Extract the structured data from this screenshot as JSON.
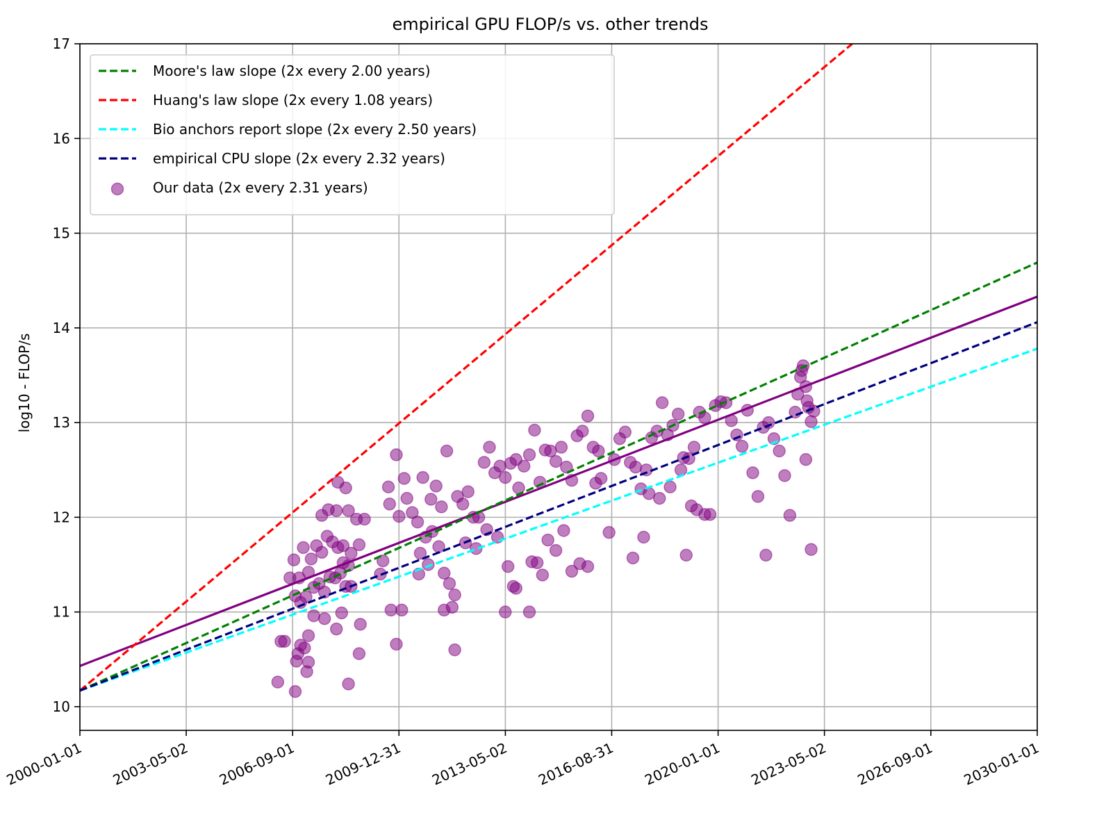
{
  "chart_data": {
    "type": "scatter",
    "title": "empirical GPU FLOP/s vs. other trends",
    "xlabel": "",
    "ylabel": "log10 - FLOP/s",
    "x_axis_kind": "date",
    "xlim": [
      "2000-01-01",
      "2030-01-01"
    ],
    "ylim": [
      9.75,
      17
    ],
    "x_ticks": [
      "2000-01-01",
      "2003-05-02",
      "2006-09-01",
      "2009-12-31",
      "2013-05-02",
      "2016-08-31",
      "2020-01-01",
      "2023-05-02",
      "2026-09-01",
      "2030-01-01"
    ],
    "y_ticks": [
      10,
      11,
      12,
      13,
      14,
      15,
      16,
      17
    ],
    "grid": true,
    "legend_placement": "top-left",
    "lines": [
      {
        "name": "Moore's law slope (2x every 2.00 years)",
        "style": "dashed",
        "color": "#008000",
        "points": [
          [
            "2000-01-01",
            10.17
          ],
          [
            "2030-01-01",
            14.69
          ]
        ]
      },
      {
        "name": "Huang's law slope (2x every 1.08 years)",
        "style": "dashed",
        "color": "#ff0000",
        "points": [
          [
            "2000-01-01",
            10.17
          ],
          [
            "2024-03-15",
            17.0
          ]
        ]
      },
      {
        "name": "Bio anchors report slope (2x every 2.50 years)",
        "style": "dashed",
        "color": "#00ffff",
        "points": [
          [
            "2000-01-01",
            10.17
          ],
          [
            "2030-01-01",
            13.78
          ]
        ]
      },
      {
        "name": "empirical CPU slope (2x every 2.32 years)",
        "style": "dashed",
        "color": "#000080",
        "points": [
          [
            "2000-01-01",
            10.17
          ],
          [
            "2030-01-01",
            14.06
          ]
        ]
      },
      {
        "name": "",
        "style": "solid",
        "color": "#800080",
        "points": [
          [
            "2000-01-01",
            10.43
          ],
          [
            "2030-01-01",
            14.33
          ]
        ]
      }
    ],
    "scatter": {
      "name": "Our data (2x every 2.31 years)",
      "color": "#800080",
      "points": [
        [
          "2006-03-15",
          10.26
        ],
        [
          "2006-04-20",
          10.69
        ],
        [
          "2006-06-01",
          10.69
        ],
        [
          "2006-10-01",
          10.16
        ],
        [
          "2006-10-15",
          10.48
        ],
        [
          "2006-11-01",
          10.56
        ],
        [
          "2006-12-01",
          10.65
        ],
        [
          "2007-01-15",
          10.62
        ],
        [
          "2007-03-01",
          10.75
        ],
        [
          "2007-02-10",
          10.37
        ],
        [
          "2007-03-01",
          10.47
        ],
        [
          "2007-05-01",
          10.96
        ],
        [
          "2006-08-01",
          11.36
        ],
        [
          "2006-09-15",
          11.55
        ],
        [
          "2006-11-15",
          11.36
        ],
        [
          "2007-01-01",
          11.68
        ],
        [
          "2007-04-01",
          11.56
        ],
        [
          "2007-06-01",
          11.7
        ],
        [
          "2007-08-01",
          11.63
        ],
        [
          "2007-10-01",
          11.8
        ],
        [
          "2007-12-01",
          11.74
        ],
        [
          "2008-02-01",
          11.68
        ],
        [
          "2008-04-01",
          11.52
        ],
        [
          "2008-06-01",
          11.49
        ],
        [
          "2007-07-01",
          11.3
        ],
        [
          "2007-09-01",
          11.21
        ],
        [
          "2007-11-01",
          11.37
        ],
        [
          "2008-01-01",
          11.36
        ],
        [
          "2008-03-01",
          11.41
        ],
        [
          "2008-05-01",
          11.27
        ],
        [
          "2008-07-01",
          11.27
        ],
        [
          "2007-03-01",
          11.42
        ],
        [
          "2007-05-01",
          11.26
        ],
        [
          "2007-02-01",
          11.16
        ],
        [
          "2006-12-01",
          11.1
        ],
        [
          "2006-10-01",
          11.17
        ],
        [
          "2007-08-01",
          12.02
        ],
        [
          "2007-10-15",
          12.08
        ],
        [
          "2008-01-15",
          12.07
        ],
        [
          "2008-02-01",
          12.37
        ],
        [
          "2008-05-01",
          12.31
        ],
        [
          "2008-06-01",
          12.07
        ],
        [
          "2008-09-01",
          11.98
        ],
        [
          "2008-12-01",
          11.98
        ],
        [
          "2008-04-01",
          11.7
        ],
        [
          "2008-07-01",
          11.62
        ],
        [
          "2008-10-01",
          11.71
        ],
        [
          "2007-09-01",
          10.93
        ],
        [
          "2008-01-15",
          10.82
        ],
        [
          "2008-03-15",
          10.99
        ],
        [
          "2008-06-01",
          10.24
        ],
        [
          "2008-10-01",
          10.56
        ],
        [
          "2008-10-15",
          10.87
        ],
        [
          "2009-07-01",
          11.54
        ],
        [
          "2009-06-01",
          11.4
        ],
        [
          "2009-10-01",
          11.02
        ],
        [
          "2009-12-01",
          10.66
        ],
        [
          "2010-02-01",
          11.02
        ],
        [
          "2009-09-01",
          12.32
        ],
        [
          "2009-12-01",
          12.66
        ],
        [
          "2010-03-01",
          12.41
        ],
        [
          "2009-09-15",
          12.14
        ],
        [
          "2010-01-01",
          12.01
        ],
        [
          "2010-04-01",
          12.2
        ],
        [
          "2010-06-01",
          12.05
        ],
        [
          "2010-08-01",
          11.95
        ],
        [
          "2010-10-01",
          12.42
        ],
        [
          "2011-01-01",
          12.19
        ],
        [
          "2011-03-01",
          12.33
        ],
        [
          "2011-05-01",
          12.11
        ],
        [
          "2011-07-01",
          12.7
        ],
        [
          "2010-09-01",
          11.62
        ],
        [
          "2010-11-01",
          11.79
        ],
        [
          "2011-01-15",
          11.85
        ],
        [
          "2011-04-01",
          11.69
        ],
        [
          "2010-08-15",
          11.4
        ],
        [
          "2010-12-01",
          11.5
        ],
        [
          "2011-06-01",
          11.41
        ],
        [
          "2011-08-01",
          11.3
        ],
        [
          "2011-06-01",
          11.02
        ],
        [
          "2011-09-01",
          11.05
        ],
        [
          "2011-10-01",
          11.18
        ],
        [
          "2011-10-01",
          10.6
        ],
        [
          "2011-11-01",
          12.22
        ],
        [
          "2012-01-01",
          12.14
        ],
        [
          "2012-03-01",
          12.27
        ],
        [
          "2012-05-01",
          12.0
        ],
        [
          "2012-07-01",
          12.0
        ],
        [
          "2012-09-01",
          12.58
        ],
        [
          "2012-11-01",
          12.74
        ],
        [
          "2013-01-01",
          12.47
        ],
        [
          "2013-03-01",
          12.54
        ],
        [
          "2013-05-01",
          12.42
        ],
        [
          "2013-07-01",
          12.57
        ],
        [
          "2013-09-01",
          12.61
        ],
        [
          "2012-02-01",
          11.73
        ],
        [
          "2012-06-01",
          11.67
        ],
        [
          "2012-10-01",
          11.87
        ],
        [
          "2013-02-01",
          11.79
        ],
        [
          "2013-06-01",
          11.48
        ],
        [
          "2013-08-01",
          11.27
        ],
        [
          "2013-09-01",
          11.25
        ],
        [
          "2013-05-01",
          11.0
        ],
        [
          "2014-02-01",
          11.0
        ],
        [
          "2013-10-01",
          12.31
        ],
        [
          "2013-12-01",
          12.54
        ],
        [
          "2014-02-01",
          12.66
        ],
        [
          "2014-04-01",
          12.92
        ],
        [
          "2014-06-01",
          12.37
        ],
        [
          "2014-08-01",
          12.71
        ],
        [
          "2014-10-01",
          12.7
        ],
        [
          "2014-12-01",
          12.59
        ],
        [
          "2015-02-01",
          12.74
        ],
        [
          "2015-04-01",
          12.53
        ],
        [
          "2015-06-01",
          12.39
        ],
        [
          "2015-08-01",
          12.86
        ],
        [
          "2015-10-01",
          12.91
        ],
        [
          "2015-12-01",
          13.07
        ],
        [
          "2016-02-01",
          12.74
        ],
        [
          "2016-04-01",
          12.7
        ],
        [
          "2014-03-01",
          11.53
        ],
        [
          "2014-05-01",
          11.52
        ],
        [
          "2014-07-01",
          11.39
        ],
        [
          "2014-09-01",
          11.76
        ],
        [
          "2014-12-01",
          11.65
        ],
        [
          "2015-03-01",
          11.86
        ],
        [
          "2015-06-01",
          11.43
        ],
        [
          "2015-09-01",
          11.51
        ],
        [
          "2015-12-01",
          11.48
        ],
        [
          "2016-03-01",
          12.36
        ],
        [
          "2016-05-01",
          12.41
        ],
        [
          "2016-08-01",
          11.84
        ],
        [
          "2016-10-01",
          12.61
        ],
        [
          "2016-12-01",
          12.83
        ],
        [
          "2017-02-01",
          12.9
        ],
        [
          "2017-04-01",
          12.58
        ],
        [
          "2017-06-01",
          12.53
        ],
        [
          "2017-08-01",
          12.3
        ],
        [
          "2017-10-01",
          12.5
        ],
        [
          "2017-12-01",
          12.84
        ],
        [
          "2018-02-01",
          12.91
        ],
        [
          "2018-04-01",
          13.21
        ],
        [
          "2018-06-01",
          12.87
        ],
        [
          "2018-08-01",
          12.97
        ],
        [
          "2018-10-01",
          13.09
        ],
        [
          "2018-12-01",
          12.63
        ],
        [
          "2019-02-01",
          12.62
        ],
        [
          "2019-04-01",
          12.74
        ],
        [
          "2019-06-01",
          13.11
        ],
        [
          "2019-08-01",
          13.05
        ],
        [
          "2017-05-01",
          11.57
        ],
        [
          "2017-09-01",
          11.79
        ],
        [
          "2017-11-01",
          12.25
        ],
        [
          "2018-03-01",
          12.2
        ],
        [
          "2018-07-01",
          12.32
        ],
        [
          "2018-11-01",
          12.5
        ],
        [
          "2019-01-01",
          11.6
        ],
        [
          "2019-03-01",
          12.12
        ],
        [
          "2019-05-01",
          12.08
        ],
        [
          "2019-08-01",
          12.03
        ],
        [
          "2019-10-01",
          12.03
        ],
        [
          "2019-12-01",
          13.18
        ],
        [
          "2020-02-01",
          13.22
        ],
        [
          "2020-04-01",
          13.21
        ],
        [
          "2020-06-01",
          13.02
        ],
        [
          "2020-08-01",
          12.87
        ],
        [
          "2020-10-01",
          12.75
        ],
        [
          "2020-12-01",
          13.13
        ],
        [
          "2021-02-01",
          12.47
        ],
        [
          "2021-04-01",
          12.22
        ],
        [
          "2021-06-01",
          12.95
        ],
        [
          "2021-08-01",
          13.0
        ],
        [
          "2021-10-01",
          12.83
        ],
        [
          "2021-12-01",
          12.7
        ],
        [
          "2022-02-01",
          12.44
        ],
        [
          "2022-04-01",
          12.02
        ],
        [
          "2021-07-01",
          11.6
        ],
        [
          "2022-06-01",
          13.11
        ],
        [
          "2022-07-01",
          13.3
        ],
        [
          "2022-08-01",
          13.48
        ],
        [
          "2022-08-15",
          13.55
        ],
        [
          "2022-09-01",
          13.6
        ],
        [
          "2022-10-01",
          13.38
        ],
        [
          "2022-10-15",
          13.23
        ],
        [
          "2022-11-01",
          13.16
        ],
        [
          "2022-12-01",
          13.01
        ],
        [
          "2023-01-01",
          13.12
        ],
        [
          "2022-10-01",
          12.61
        ],
        [
          "2022-12-01",
          11.66
        ]
      ]
    }
  }
}
